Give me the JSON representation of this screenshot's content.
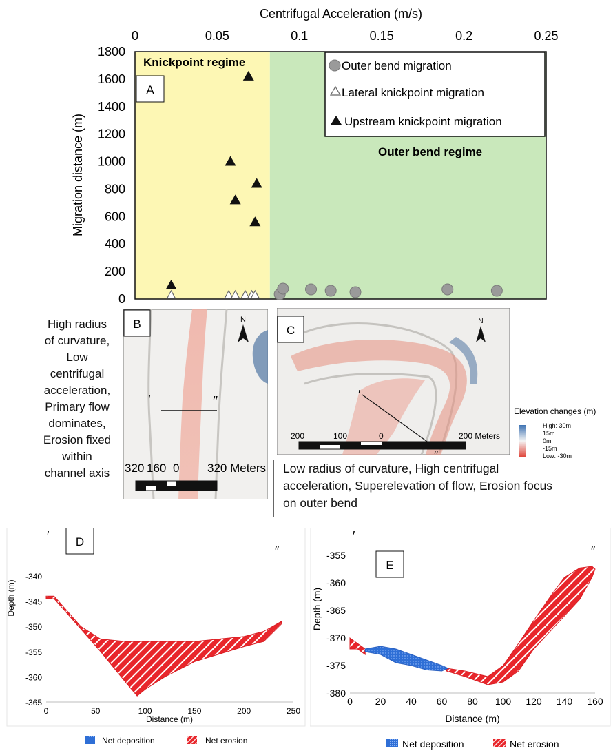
{
  "panel_labels": {
    "a": "A",
    "b": "B",
    "c": "C",
    "d": "D",
    "e": "E"
  },
  "colors": {
    "knickpoint_regime": "#fdf7b4",
    "outer_bend_regime": "#c9e8bb",
    "erosion": "#e8262b",
    "deposition": "#2f6fd6",
    "circle_fill": "#9a9a9a",
    "elev_high": "#3f73b3",
    "elev_low": "#e0473c"
  },
  "regimes": {
    "knickpoint": "Knickpoint regime",
    "outer_bend": "Outer bend regime",
    "boundary_x": 0.082
  },
  "descriptions": {
    "b": [
      "High radius",
      "of curvature,",
      "Low",
      "centrifugal",
      "acceleration,",
      "Primary flow",
      "dominates,",
      "Erosion fixed",
      "within",
      "channel axis"
    ],
    "c": [
      "Low radius of curvature, High centrifugal",
      "acceleration, Superelevation of flow, Erosion focus",
      "on outer bend"
    ]
  },
  "maps": {
    "b": {
      "north": "N",
      "scale_labels": [
        "320",
        "160",
        "0",
        "320 Meters"
      ],
      "marker_left": "′",
      "marker_right": "″"
    },
    "c": {
      "north": "N",
      "scale_labels": [
        "200",
        "100",
        "0",
        "200 Meters"
      ],
      "marker_left": "′",
      "marker_right": "″"
    }
  },
  "elevation_legend": {
    "title": "Elevation changes (m)",
    "labels": [
      "High: 30m",
      "15m",
      "0m",
      "-15m",
      "Low: -30m"
    ]
  },
  "profile_markers": {
    "d_left": "′",
    "d_right": "″",
    "e_left": "′",
    "e_right": "″"
  },
  "profile_legend": {
    "deposition": "Net deposition",
    "erosion": "Net erosion"
  },
  "chart_data": [
    {
      "id": "scatter",
      "type": "scatter",
      "xlabel": "Centrifugal Acceleration (m/s)",
      "ylabel": "Migration distance (m)",
      "xlim": [
        0,
        0.25
      ],
      "ylim": [
        0,
        1800
      ],
      "xticks": [
        0,
        0.05,
        0.1,
        0.15,
        0.2,
        0.25
      ],
      "xtick_labels": [
        "0",
        "0.05",
        "0.1",
        "0.15",
        "0.2",
        "0.25"
      ],
      "yticks": [
        0,
        200,
        400,
        600,
        800,
        1000,
        1200,
        1400,
        1600,
        1800
      ],
      "grid": false,
      "legend_position": "top-right",
      "series": [
        {
          "name": "Outer bend migration",
          "marker": "circle",
          "x": [
            0.088,
            0.09,
            0.107,
            0.119,
            0.134,
            0.19,
            0.22
          ],
          "y": [
            35,
            75,
            70,
            60,
            50,
            70,
            60
          ]
        },
        {
          "name": "Lateral knickpoint migration",
          "marker": "open-triangle",
          "x": [
            0.022,
            0.057,
            0.061,
            0.067,
            0.071,
            0.073
          ],
          "y": [
            0,
            0,
            0,
            0,
            0,
            0
          ]
        },
        {
          "name": "Upstream knickpoint migration",
          "marker": "filled-triangle",
          "x": [
            0.022,
            0.058,
            0.061,
            0.069,
            0.073,
            0.074
          ],
          "y": [
            100,
            1000,
            720,
            1620,
            560,
            840
          ]
        }
      ]
    },
    {
      "id": "profile_d",
      "type": "area",
      "xlabel": "Distance (m)",
      "ylabel": "Depth (m)",
      "xlim": [
        0,
        250
      ],
      "ylim": [
        -365,
        -340
      ],
      "xticks": [
        0,
        50,
        100,
        150,
        200,
        250
      ],
      "yticks": [
        -340,
        -345,
        -350,
        -355,
        -360,
        -365
      ],
      "series": [
        {
          "name": "Net erosion",
          "upper": [
            [
              0,
              -344
            ],
            [
              8,
              -344
            ],
            [
              17,
              -346
            ],
            [
              35,
              -350
            ],
            [
              55,
              -352.5
            ],
            [
              80,
              -353
            ],
            [
              100,
              -353
            ],
            [
              150,
              -353
            ],
            [
              200,
              -352
            ],
            [
              220,
              -351
            ],
            [
              238,
              -349
            ]
          ],
          "lower": [
            [
              238,
              -349.5
            ],
            [
              220,
              -353
            ],
            [
              200,
              -354
            ],
            [
              150,
              -357
            ],
            [
              120,
              -360
            ],
            [
              100,
              -362.5
            ],
            [
              92,
              -363.8
            ],
            [
              80,
              -361
            ],
            [
              55,
              -355
            ],
            [
              35,
              -350.5
            ],
            [
              17,
              -346.5
            ],
            [
              8,
              -344.5
            ],
            [
              0,
              -344.5
            ]
          ]
        }
      ]
    },
    {
      "id": "profile_e",
      "type": "area",
      "xlabel": "Distance (m)",
      "ylabel": "Depth (m)",
      "xlim": [
        0,
        160
      ],
      "ylim": [
        -380,
        -355
      ],
      "xticks": [
        0,
        20,
        40,
        60,
        80,
        100,
        120,
        140,
        160
      ],
      "yticks": [
        -355,
        -360,
        -365,
        -370,
        -375,
        -380
      ],
      "series": [
        {
          "name": "Net erosion",
          "polygons": [
            [
              [
                0,
                -370
              ],
              [
                5,
                -371
              ],
              [
                10,
                -372
              ],
              [
                10,
                -373
              ],
              [
                5,
                -372
              ],
              [
                0,
                -372
              ]
            ],
            [
              [
                63,
                -375.5
              ],
              [
                75,
                -376
              ],
              [
                90,
                -377
              ],
              [
                100,
                -375
              ],
              [
                110,
                -371
              ],
              [
                122,
                -366
              ],
              [
                132,
                -362
              ],
              [
                140,
                -359
              ],
              [
                150,
                -357.3
              ],
              [
                158,
                -357
              ],
              [
                160,
                -357.5
              ],
              [
                158,
                -359
              ],
              [
                150,
                -363
              ],
              [
                140,
                -366
              ],
              [
                130,
                -369
              ],
              [
                120,
                -372
              ],
              [
                110,
                -376
              ],
              [
                100,
                -378
              ],
              [
                90,
                -378.5
              ],
              [
                75,
                -377
              ],
              [
                63,
                -376
              ]
            ]
          ]
        },
        {
          "name": "Net deposition",
          "polygons": [
            [
              [
                10,
                -372
              ],
              [
                20,
                -371.5
              ],
              [
                30,
                -372
              ],
              [
                40,
                -373
              ],
              [
                50,
                -374
              ],
              [
                60,
                -375
              ],
              [
                64,
                -375.5
              ],
              [
                60,
                -376
              ],
              [
                50,
                -375.8
              ],
              [
                40,
                -375
              ],
              [
                30,
                -374.5
              ],
              [
                20,
                -373
              ],
              [
                10,
                -372.5
              ]
            ]
          ]
        }
      ]
    }
  ]
}
